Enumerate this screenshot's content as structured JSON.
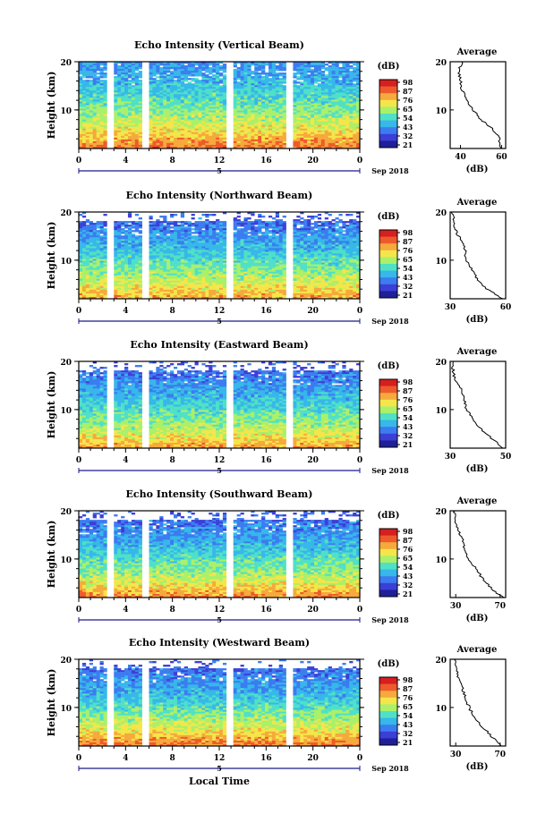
{
  "date_label": "Sep 2018",
  "day_label": "5",
  "bottom_xlabel": "Local Time",
  "colorbar_unit": "(dB)",
  "colorbar_colors": [
    "#1f1f9a",
    "#3b3fd6",
    "#3b7cf0",
    "#37b7ea",
    "#4fe0c7",
    "#aaf06a",
    "#f4e64a",
    "#f6a93c",
    "#ee5a2c",
    "#d61f1f"
  ],
  "average_title": "Average",
  "average_unit": "(dB)",
  "ylabel": "Height (km)",
  "x_ticks": [
    "0",
    "4",
    "8",
    "12",
    "16",
    "20",
    "0"
  ],
  "y_ticks": [
    "20",
    "10"
  ],
  "panels": [
    {
      "title": "Echo Intensity (Vertical Beam)",
      "colorbar_ticks": [
        "98",
        "87",
        "76",
        "65",
        "54",
        "43",
        "32",
        "21"
      ],
      "avg_ticks": [
        "40",
        "60"
      ]
    },
    {
      "title": "Echo Intensity (Northward Beam)",
      "colorbar_ticks": [
        "98",
        "87",
        "76",
        "65",
        "54",
        "43",
        "32",
        "21"
      ],
      "avg_ticks": [
        "30",
        "60"
      ]
    },
    {
      "title": "Echo Intensity (Eastward Beam)",
      "colorbar_ticks": [
        "98",
        "87",
        "76",
        "65",
        "54",
        "43",
        "32",
        "21"
      ],
      "avg_ticks": [
        "30",
        "50"
      ]
    },
    {
      "title": "Echo Intensity (Southward Beam)",
      "colorbar_ticks": [
        "98",
        "87",
        "76",
        "65",
        "54",
        "43",
        "32",
        "21"
      ],
      "avg_ticks": [
        "30",
        "70"
      ]
    },
    {
      "title": "Echo Intensity (Westward Beam)",
      "colorbar_ticks": [
        "98",
        "87",
        "76",
        "65",
        "54",
        "43",
        "32",
        "21"
      ],
      "avg_ticks": [
        "30",
        "70"
      ]
    }
  ],
  "chart_data": [
    {
      "type": "heatmap",
      "title": "Echo Intensity (Vertical Beam)",
      "xlabel": "",
      "ylabel": "Height (km)",
      "xlim": [
        0,
        24
      ],
      "ylim": [
        2,
        20
      ],
      "color_unit": "dB",
      "color_range": [
        21,
        98
      ],
      "data_gaps_hours": [
        [
          2.5,
          3.0
        ],
        [
          5.4,
          6.0
        ],
        [
          12.7,
          13.2
        ],
        [
          17.8,
          18.2
        ]
      ],
      "profile_height_km": [
        2,
        4,
        6,
        8,
        10,
        12,
        14,
        16,
        18,
        20
      ],
      "profile_db": [
        85,
        78,
        70,
        65,
        60,
        55,
        52,
        48,
        45,
        43
      ]
    },
    {
      "type": "line",
      "title": "Average",
      "xlabel": "(dB)",
      "ylabel": "",
      "xlim": [
        35,
        62
      ],
      "ylim": [
        2,
        20
      ],
      "x": [
        60,
        59,
        56,
        50,
        46,
        43,
        41,
        40,
        39,
        41
      ],
      "y": [
        2,
        4,
        6,
        8,
        10,
        12,
        14,
        16,
        18,
        20
      ]
    },
    {
      "type": "heatmap",
      "title": "Echo Intensity (Northward Beam)",
      "xlabel": "",
      "ylabel": "Height (km)",
      "xlim": [
        0,
        24
      ],
      "ylim": [
        2,
        20
      ],
      "color_unit": "dB",
      "color_range": [
        21,
        98
      ],
      "data_gaps_hours": [
        [
          2.5,
          3.0
        ],
        [
          5.4,
          6.0
        ],
        [
          12.7,
          13.2
        ],
        [
          17.8,
          18.2
        ]
      ],
      "profile_height_km": [
        2,
        4,
        6,
        8,
        10,
        12,
        14,
        16,
        18,
        20
      ],
      "profile_db": [
        80,
        72,
        65,
        60,
        56,
        50,
        46,
        42,
        38,
        36
      ]
    },
    {
      "type": "line",
      "title": "Average",
      "xlabel": "(dB)",
      "ylabel": "",
      "xlim": [
        30,
        60
      ],
      "ylim": [
        2,
        20
      ],
      "x": [
        58,
        50,
        45,
        42,
        39,
        38,
        36,
        33,
        32,
        31
      ],
      "y": [
        2,
        4,
        6,
        8,
        10,
        12,
        14,
        16,
        18,
        20
      ]
    },
    {
      "type": "heatmap",
      "title": "Echo Intensity (Eastward Beam)",
      "xlabel": "",
      "ylabel": "Height (km)",
      "xlim": [
        0,
        24
      ],
      "ylim": [
        2,
        20
      ],
      "color_unit": "dB",
      "color_range": [
        21,
        98
      ],
      "data_gaps_hours": [
        [
          2.5,
          3.0
        ],
        [
          5.4,
          6.0
        ],
        [
          12.7,
          13.2
        ],
        [
          17.8,
          18.2
        ]
      ],
      "profile_height_km": [
        2,
        4,
        6,
        8,
        10,
        12,
        14,
        16,
        18,
        20
      ],
      "profile_db": [
        80,
        72,
        65,
        60,
        55,
        50,
        46,
        42,
        38,
        35
      ]
    },
    {
      "type": "line",
      "title": "Average",
      "xlabel": "(dB)",
      "ylabel": "",
      "xlim": [
        30,
        50
      ],
      "ylim": [
        2,
        20
      ],
      "x": [
        49,
        45,
        41,
        38,
        36,
        35,
        34,
        32,
        31,
        31
      ],
      "y": [
        2,
        4,
        6,
        8,
        10,
        12,
        14,
        16,
        18,
        20
      ]
    },
    {
      "type": "heatmap",
      "title": "Echo Intensity (Southward Beam)",
      "xlabel": "",
      "ylabel": "Height (km)",
      "xlim": [
        0,
        24
      ],
      "ylim": [
        2,
        20
      ],
      "color_unit": "dB",
      "color_range": [
        21,
        98
      ],
      "data_gaps_hours": [
        [
          2.5,
          3.0
        ],
        [
          5.4,
          6.0
        ],
        [
          12.7,
          13.2
        ],
        [
          17.8,
          18.2
        ]
      ],
      "profile_height_km": [
        2,
        4,
        6,
        8,
        10,
        12,
        14,
        16,
        18,
        20
      ],
      "profile_db": [
        82,
        74,
        66,
        60,
        56,
        50,
        46,
        42,
        38,
        35
      ]
    },
    {
      "type": "line",
      "title": "Average",
      "xlabel": "(dB)",
      "ylabel": "",
      "xlim": [
        25,
        75
      ],
      "ylim": [
        2,
        20
      ],
      "x": [
        72,
        62,
        54,
        48,
        42,
        38,
        36,
        32,
        30,
        29
      ],
      "y": [
        2,
        4,
        6,
        8,
        10,
        12,
        14,
        16,
        18,
        20
      ]
    },
    {
      "type": "heatmap",
      "title": "Echo Intensity (Westward Beam)",
      "xlabel": "Local Time",
      "ylabel": "Height (km)",
      "xlim": [
        0,
        24
      ],
      "ylim": [
        2,
        20
      ],
      "color_unit": "dB",
      "color_range": [
        21,
        98
      ],
      "data_gaps_hours": [
        [
          2.5,
          3.0
        ],
        [
          5.4,
          6.0
        ],
        [
          12.7,
          13.2
        ],
        [
          17.8,
          18.2
        ]
      ],
      "profile_height_km": [
        2,
        4,
        6,
        8,
        10,
        12,
        14,
        16,
        18,
        20
      ],
      "profile_db": [
        84,
        76,
        68,
        62,
        56,
        50,
        46,
        42,
        38,
        35
      ]
    },
    {
      "type": "line",
      "title": "Average",
      "xlabel": "(dB)",
      "ylabel": "",
      "xlim": [
        25,
        75
      ],
      "ylim": [
        2,
        20
      ],
      "x": [
        72,
        62,
        54,
        47,
        42,
        39,
        36,
        33,
        30,
        29
      ],
      "y": [
        2,
        4,
        6,
        8,
        10,
        12,
        14,
        16,
        18,
        20
      ]
    }
  ]
}
